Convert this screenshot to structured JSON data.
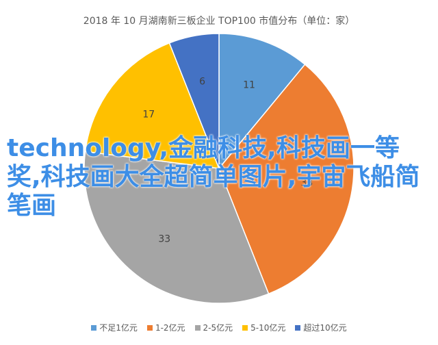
{
  "chart_data": {
    "type": "pie",
    "title": "2018 年 10 月湖南新三板企业 TOP100 市值分布（单位：家）",
    "categories": [
      "不足1亿元",
      "1-2亿元",
      "2-5亿元",
      "5-10亿元",
      "超过10亿元"
    ],
    "values": [
      11,
      33,
      33,
      17,
      6
    ],
    "colors": [
      "#5b9bd5",
      "#ed7d31",
      "#a5a5a5",
      "#ffc000",
      "#4472c4"
    ],
    "legend_position": "bottom"
  },
  "overlay": {
    "watermark_text": "technology,金融科技,科技画一等奖,科技画大全超简单图片,宇宙飞船简笔画"
  }
}
